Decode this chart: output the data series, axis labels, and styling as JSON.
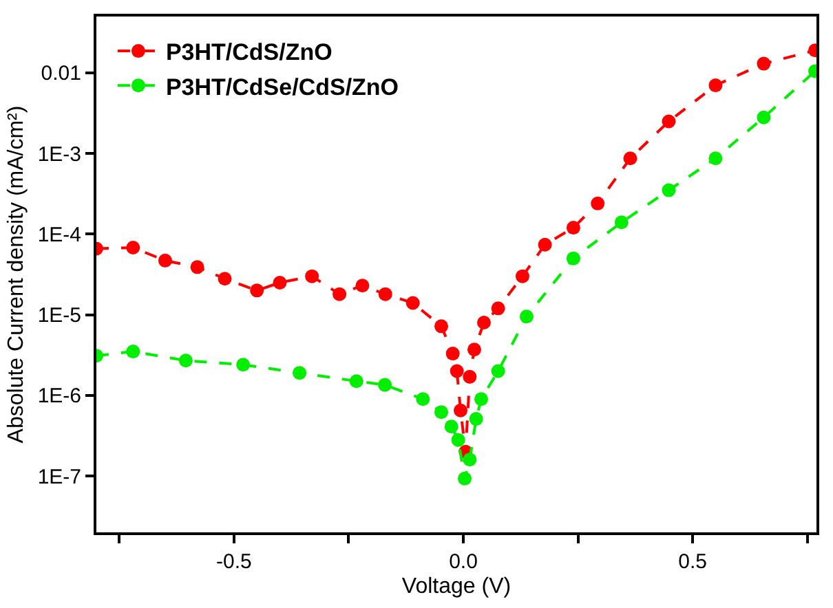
{
  "chart_data": {
    "type": "line",
    "xlabel": "Voltage (V)",
    "ylabel": "Absolute Current density (mA/cm²)",
    "log": "y",
    "legend": "top left",
    "marker": "circle",
    "line_style": "dashed",
    "xlim": [
      -0.8,
      0.77
    ],
    "ylim": [
      2e-08,
      0.05
    ],
    "xticks": [
      {
        "value": -0.75,
        "label": null
      },
      -0.5,
      {
        "value": -0.25,
        "label": null
      },
      {
        "value": 0,
        "label": "0.0"
      },
      {
        "value": 0.25,
        "label": null
      },
      0.5,
      {
        "value": 0.75,
        "label": null
      }
    ],
    "yticks": [
      {
        "value": 1e-07,
        "label": "1E-7"
      },
      {
        "value": 1e-06,
        "label": "1E-6"
      },
      {
        "value": 1e-05,
        "label": "1E-5"
      },
      {
        "value": 0.0001,
        "label": "1E-4"
      },
      {
        "value": 0.001,
        "label": "1E-3"
      },
      {
        "value": 0.01,
        "label": "0.01"
      }
    ],
    "series": [
      {
        "name": "P3HT/CdS/ZnO",
        "color": "#ff0000",
        "x": [
          -0.8,
          -0.72,
          -0.65,
          -0.58,
          -0.52,
          -0.45,
          -0.4,
          -0.33,
          -0.27,
          -0.22,
          -0.17,
          -0.11,
          -0.048,
          -0.023,
          -0.014,
          -0.006,
          0.005,
          0.014,
          0.024,
          0.045,
          0.076,
          0.129,
          0.178,
          0.24,
          0.293,
          0.364,
          0.448,
          0.55,
          0.655,
          0.767
        ],
        "values": [
          6.6e-05,
          6.8e-05,
          4.7e-05,
          3.9e-05,
          2.8e-05,
          2e-05,
          2.5e-05,
          3e-05,
          1.8e-05,
          2.3e-05,
          1.8e-05,
          1.4e-05,
          7.2e-06,
          3.3e-06,
          2e-06,
          6.5e-07,
          2e-07,
          1.7e-06,
          3.7e-06,
          8e-06,
          1.2e-05,
          3e-05,
          7.4e-05,
          0.00012,
          0.00024,
          0.00087,
          0.0025,
          0.007,
          0.013,
          0.019
        ]
      },
      {
        "name": "P3HT/CdSe/CdS/ZnO",
        "color": "#00ee00",
        "x": [
          -0.8,
          -0.72,
          -0.605,
          -0.48,
          -0.357,
          -0.233,
          -0.171,
          -0.088,
          -0.048,
          -0.026,
          -0.011,
          0.003,
          0.014,
          0.028,
          0.039,
          0.076,
          0.138,
          0.24,
          0.345,
          0.448,
          0.55,
          0.655,
          0.767
        ],
        "values": [
          3.1e-06,
          3.5e-06,
          2.7e-06,
          2.4e-06,
          1.9e-06,
          1.5e-06,
          1.35e-06,
          9e-07,
          6.2e-07,
          4.1e-07,
          2.8e-07,
          9.3e-08,
          1.6e-07,
          5.1e-07,
          9e-07,
          2e-06,
          9.5e-06,
          5e-05,
          0.00014,
          0.00035,
          0.00087,
          0.0028,
          0.0105
        ]
      }
    ]
  }
}
